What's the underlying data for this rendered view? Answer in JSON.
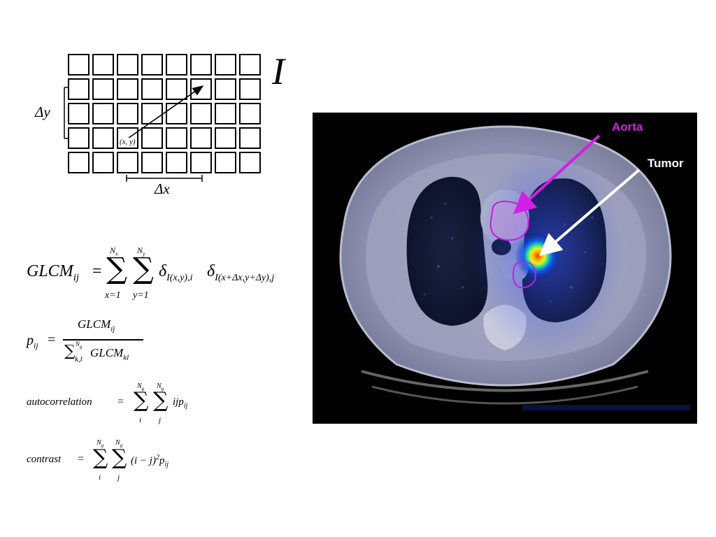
{
  "grid": {
    "image_label": "I",
    "dy_label": "Δy",
    "dx_label": "Δx",
    "pixel_label": "(x, y)",
    "rows": 5,
    "cols": 8
  },
  "ct_image": {
    "annotations": [
      {
        "text": "Aorta",
        "color": "#d21ee6"
      },
      {
        "text": "Tumor",
        "color": "#ffffff"
      }
    ]
  },
  "equations": {
    "glcm": {
      "lhs": "GLCM",
      "lhs_sub": "ij",
      "eq": "=",
      "sum1_top": "N",
      "sum1_top_sub": "x",
      "sum1_bottom": "x=1",
      "sum2_top": "N",
      "sum2_top_sub": "y",
      "sum2_bottom": "y=1",
      "delta1_sub": "I(x,y),i",
      "delta2_sub": "I(x+Δx,y+Δy),j"
    },
    "pij": {
      "lhs": "p",
      "lhs_sub": "ij",
      "num": "GLCM",
      "num_sub": "ij",
      "den_sum_top": "N",
      "den_sum_top_sub": "g",
      "den_sum_sub": "k,l",
      "den": "GLCM",
      "den_sub": "kl"
    },
    "autocorrelation": {
      "lhs": "autocorrelation",
      "sum_top": "N",
      "sum_top_sub": "g",
      "sum_i": "i",
      "sum_j": "j",
      "term": "ijp",
      "term_sub": "ij"
    },
    "contrast": {
      "lhs": "contrast",
      "sum_top": "N",
      "sum_top_sub": "g",
      "sum_i": "i",
      "sum_j": "j",
      "term": "(i − j)",
      "term_sup": "2",
      "term2": "p",
      "term2_sub": "ij"
    }
  }
}
